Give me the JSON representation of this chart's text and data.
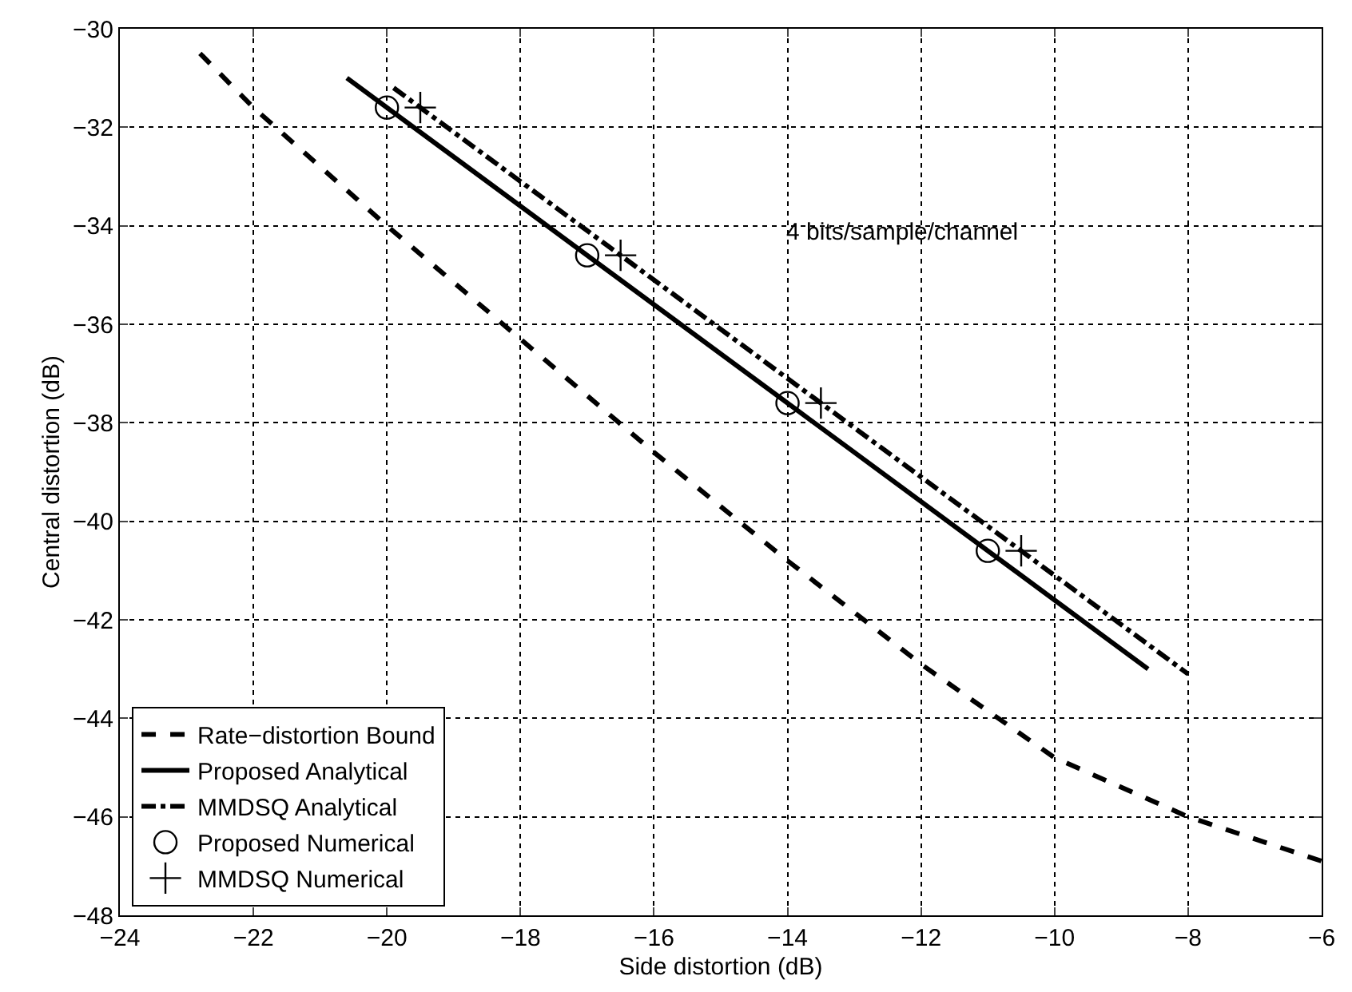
{
  "chart_data": {
    "type": "line",
    "xlabel": "Side distortion (dB)",
    "ylabel": "Central distortion (dB)",
    "xlim": [
      -24,
      -6
    ],
    "ylim": [
      -48,
      -30
    ],
    "xticks": [
      -24,
      -22,
      -20,
      -18,
      -16,
      -14,
      -12,
      -10,
      -8,
      -6
    ],
    "yticks": [
      -48,
      -46,
      -44,
      -42,
      -40,
      -38,
      -36,
      -34,
      -32,
      -30
    ],
    "grid": true,
    "legend": "bottom left",
    "annotations": [
      "4 bits/sample/channel"
    ],
    "series": [
      {
        "name": "Rate−distortion Bound",
        "line_style": "dashed",
        "marker": "none",
        "color": "#000000",
        "x": [
          -22.8,
          -22,
          -20,
          -18,
          -16,
          -14,
          -12,
          -10,
          -8,
          -6
        ],
        "values": [
          -30.5,
          -31.6,
          -34.0,
          -36.3,
          -38.6,
          -40.8,
          -42.9,
          -44.8,
          -46.0,
          -46.9
        ]
      },
      {
        "name": "Proposed Analytical",
        "line_style": "solid",
        "marker": "none",
        "color": "#000000",
        "x": [
          -20.6,
          -8.6
        ],
        "values": [
          -31.0,
          -43.0
        ]
      },
      {
        "name": "MMDSQ Analytical",
        "line_style": "dashdot",
        "marker": "none",
        "color": "#000000",
        "x": [
          -19.9,
          -8.0
        ],
        "values": [
          -31.2,
          -43.1
        ]
      },
      {
        "name": "Proposed Numerical",
        "type": "scatter",
        "marker": "circle",
        "color": "#000000",
        "x": [
          -20,
          -17,
          -14,
          -11
        ],
        "values": [
          -31.6,
          -34.6,
          -37.6,
          -40.6
        ]
      },
      {
        "name": "MMDSQ Numerical",
        "type": "scatter",
        "marker": "cross",
        "color": "#000000",
        "x": [
          -19.5,
          -16.5,
          -13.5,
          -10.5
        ],
        "values": [
          -31.6,
          -34.6,
          -37.6,
          -40.6
        ]
      }
    ]
  }
}
